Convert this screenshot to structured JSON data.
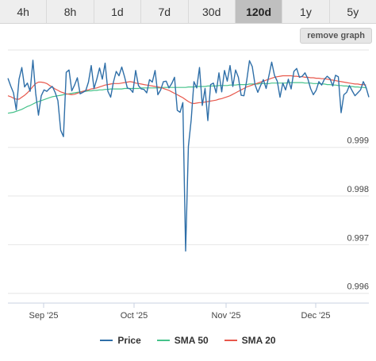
{
  "tabs": [
    {
      "label": "4h",
      "active": false
    },
    {
      "label": "8h",
      "active": false
    },
    {
      "label": "1d",
      "active": false
    },
    {
      "label": "7d",
      "active": false
    },
    {
      "label": "30d",
      "active": false
    },
    {
      "label": "120d",
      "active": true
    },
    {
      "label": "1y",
      "active": false
    },
    {
      "label": "5y",
      "active": false
    }
  ],
  "remove_button_label": "remove graph",
  "legend": [
    {
      "label": "Price",
      "color": "#2f6fa8"
    },
    {
      "label": "SMA 50",
      "color": "#45c28a"
    },
    {
      "label": "SMA 20",
      "color": "#e8584c"
    }
  ],
  "chart_data": {
    "type": "line",
    "x_ticks": [
      "Sep '25",
      "Oct '25",
      "Nov '25",
      "Dec '25"
    ],
    "y_ticks": [
      0.996,
      0.997,
      0.998,
      0.999
    ],
    "ylim": [
      0.9958,
      1.001
    ],
    "grid": true,
    "legend_position": "bottom",
    "series": [
      {
        "name": "Price",
        "color": "#2f6fa8",
        "values": [
          1.00042,
          1.00026,
          1.00012,
          0.99977,
          1.0004,
          1.00064,
          1.00024,
          1.00032,
          1.00015,
          1.00079,
          1.00011,
          0.99966,
          1.00006,
          1.00018,
          1.00015,
          1.00021,
          1.00025,
          1.00013,
          0.99996,
          0.99935,
          0.99922,
          1.00054,
          1.00059,
          1.00016,
          1.00028,
          1.00043,
          1.0001,
          1.00013,
          1.00016,
          1.00034,
          1.00068,
          1.00021,
          1.0004,
          1.00063,
          1.0004,
          1.00073,
          1.00015,
          1.00003,
          1.00034,
          1.00056,
          1.00047,
          1.00065,
          1.00045,
          1.00022,
          1.0002,
          1.00013,
          1.00058,
          1.00027,
          1.0002,
          1.00019,
          1.00012,
          1.00039,
          1.00034,
          1.00058,
          1.00008,
          1.00018,
          1.00035,
          1.00036,
          1.00022,
          1.00031,
          1.00044,
          0.99976,
          0.99972,
          0.99992,
          0.99687,
          0.99902,
          0.99956,
          1.00035,
          1.00022,
          1.00064,
          0.99986,
          1.00021,
          0.99955,
          1.00029,
          1.00032,
          1.00012,
          1.00053,
          1.00014,
          1.00058,
          1.00036,
          1.00068,
          1.00025,
          1.00059,
          1.00044,
          1.00007,
          1.00006,
          1.00037,
          1.00078,
          1.00066,
          1.00029,
          1.00013,
          1.00027,
          1.00039,
          1.00021,
          1.00047,
          1.00075,
          1.00048,
          1.00036,
          1.00003,
          1.00032,
          1.00018,
          1.0004,
          1.0002,
          1.00056,
          1.00062,
          1.00044,
          1.00046,
          1.00053,
          1.00041,
          1.00021,
          1.00008,
          1.00017,
          1.00035,
          1.00028,
          1.0004,
          1.00046,
          1.00041,
          1.00026,
          1.00048,
          1.00045,
          0.99971,
          1.00008,
          1.00013,
          1.00027,
          1.00016,
          1.00006,
          1.00012,
          1.00018,
          1.00035,
          1.00023,
          1.00003
        ]
      },
      {
        "name": "SMA 50",
        "color": "#45c28a",
        "values": [
          0.9997,
          0.99971,
          0.99972,
          0.99974,
          0.99976,
          0.99978,
          0.99981,
          0.99984,
          0.99986,
          0.99989,
          0.99992,
          0.99994,
          0.99996,
          0.99998,
          1.0,
          1.00002,
          1.00004,
          1.00005,
          1.00006,
          1.00007,
          1.00008,
          1.00009,
          1.0001,
          1.00011,
          1.00012,
          1.00013,
          1.00014,
          1.00015,
          1.00015,
          1.00016,
          1.00016,
          1.00017,
          1.00017,
          1.00018,
          1.00018,
          1.00019,
          1.00019,
          1.0002,
          1.0002,
          1.0002,
          1.0002,
          1.0002,
          1.00021,
          1.00021,
          1.00021,
          1.00021,
          1.00021,
          1.00021,
          1.00022,
          1.00022,
          1.00022,
          1.00022,
          1.00022,
          1.00022,
          1.00022,
          1.00022,
          1.00023,
          1.00023,
          1.00023,
          1.00023,
          1.00023,
          1.00023,
          1.00023,
          1.00023,
          1.00023,
          1.00024,
          1.00024,
          1.00024,
          1.00025,
          1.00025,
          1.00025,
          1.00025,
          1.00026,
          1.00026,
          1.00026,
          1.00026,
          1.00027,
          1.00027,
          1.00027,
          1.00027,
          1.00028,
          1.00028,
          1.00028,
          1.00029,
          1.00029,
          1.00029,
          1.00029,
          1.0003,
          1.0003,
          1.0003,
          1.0003,
          1.00031,
          1.00031,
          1.00031,
          1.00031,
          1.00032,
          1.00032,
          1.00032,
          1.00032,
          1.00032,
          1.00032,
          1.00033,
          1.00033,
          1.00033,
          1.00033,
          1.00033,
          1.00033,
          1.00032,
          1.00032,
          1.00032,
          1.00031,
          1.00031,
          1.00031,
          1.0003,
          1.0003,
          1.00029,
          1.00029,
          1.00028,
          1.00028,
          1.00027,
          1.00027,
          1.00026,
          1.00026,
          1.00025,
          1.00025,
          1.00024,
          1.00024,
          1.00023,
          1.00023,
          1.00022
        ]
      },
      {
        "name": "SMA 20",
        "color": "#e8584c",
        "values": [
          1.00006,
          1.00004,
          1.00001,
          0.99999,
          0.99999,
          1.00003,
          1.00007,
          1.00012,
          1.00018,
          1.00025,
          1.00031,
          1.00034,
          1.00034,
          1.00033,
          1.00031,
          1.00027,
          1.00024,
          1.0002,
          1.00017,
          1.00014,
          1.00012,
          1.0001,
          1.00009,
          1.00008,
          1.00009,
          1.00011,
          1.00013,
          1.00015,
          1.00017,
          1.00018,
          1.0002,
          1.00021,
          1.00022,
          1.00024,
          1.00026,
          1.00028,
          1.00029,
          1.0003,
          1.00031,
          1.00031,
          1.00031,
          1.00032,
          1.00033,
          1.00034,
          1.00035,
          1.00034,
          1.00032,
          1.00031,
          1.0003,
          1.00029,
          1.00028,
          1.00027,
          1.00026,
          1.00025,
          1.00024,
          1.00023,
          1.00021,
          1.00019,
          1.00017,
          1.00014,
          1.00011,
          1.00008,
          1.00005,
          1.00002,
          0.99998,
          0.99994,
          0.99991,
          0.9999,
          0.99991,
          0.99992,
          0.99992,
          0.99993,
          0.99994,
          0.99995,
          0.99996,
          0.99997,
          0.99999,
          1.0,
          1.00002,
          1.00004,
          1.00006,
          1.00009,
          1.00012,
          1.00015,
          1.00018,
          1.00021,
          1.00024,
          1.00026,
          1.00028,
          1.0003,
          1.00032,
          1.00034,
          1.00036,
          1.00038,
          1.0004,
          1.00042,
          1.00044,
          1.00045,
          1.00046,
          1.00047,
          1.00047,
          1.00047,
          1.00047,
          1.00046,
          1.00046,
          1.00045,
          1.00045,
          1.00044,
          1.00044,
          1.00043,
          1.00043,
          1.00042,
          1.00042,
          1.00041,
          1.00041,
          1.0004,
          1.00039,
          1.00038,
          1.00037,
          1.00036,
          1.00035,
          1.00034,
          1.00033,
          1.00032,
          1.00031,
          1.0003,
          1.0003,
          1.00029,
          1.00029,
          1.00028
        ]
      }
    ]
  }
}
